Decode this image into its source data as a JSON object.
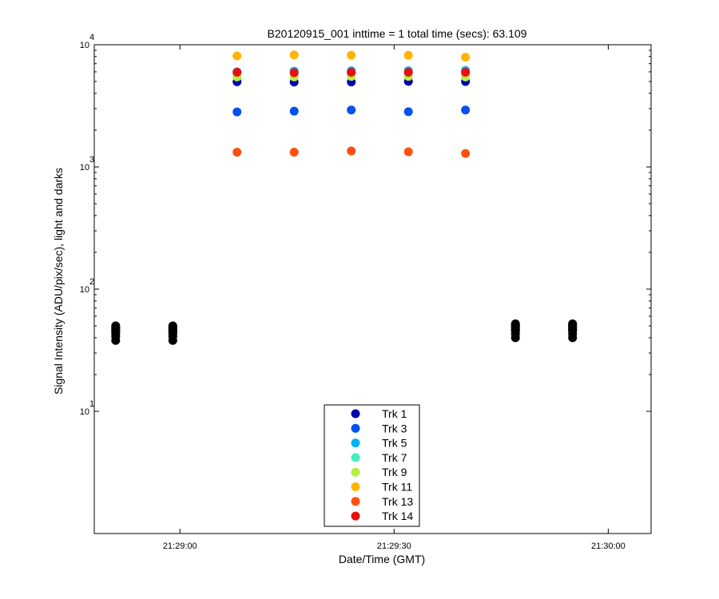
{
  "chart_data": {
    "type": "scatter",
    "title": "B20120915_001 inttime = 1 total time (secs): 63.109",
    "xlabel": "Date/Time (GMT)",
    "ylabel": "Signal Intensity (ADU/pix/sec), light and darks",
    "yscale": "log",
    "ylim": [
      1,
      10000
    ],
    "xlim": [
      "21:28:48",
      "21:30:06"
    ],
    "xticks": [
      "21:29:00",
      "21:29:30",
      "21:30:00"
    ],
    "yticks": [
      {
        "base": "10",
        "exp": "1"
      },
      {
        "base": "10",
        "exp": "2"
      },
      {
        "base": "10",
        "exp": "3"
      },
      {
        "base": "10",
        "exp": "4"
      }
    ],
    "grid": false,
    "legend_position": "bottom-center",
    "x": [
      "21:29:08",
      "21:29:16",
      "21:29:24",
      "21:29:32",
      "21:29:40"
    ],
    "series": [
      {
        "name": "Trk 1",
        "color": "#0000b4",
        "values": [
          4980,
          4950,
          4960,
          5010,
          5000
        ]
      },
      {
        "name": "Trk 3",
        "color": "#0050f0",
        "values": [
          2820,
          2860,
          2920,
          2830,
          2920
        ]
      },
      {
        "name": "Trk 5",
        "color": "#00b4f0",
        "values": [
          6000,
          6080,
          6120,
          6130,
          6160
        ]
      },
      {
        "name": "Trk 7",
        "color": "#40f0c0",
        "values": [
          5700,
          5750,
          5800,
          5800,
          5750
        ]
      },
      {
        "name": "Trk 9",
        "color": "#b4f040",
        "values": [
          5450,
          5450,
          5500,
          5500,
          5450
        ]
      },
      {
        "name": "Trk 11",
        "color": "#ffb400",
        "values": [
          8100,
          8250,
          8200,
          8200,
          7900
        ]
      },
      {
        "name": "Trk 13",
        "color": "#ff5010",
        "values": [
          1320,
          1320,
          1350,
          1330,
          1290
        ]
      },
      {
        "name": "Trk 14",
        "color": "#e81010",
        "values": [
          5950,
          5900,
          5950,
          5950,
          5950
        ]
      }
    ],
    "darks": {
      "color": "#000000",
      "x": [
        "21:28:51",
        "21:28:59",
        "21:29:47",
        "21:29:55"
      ],
      "values": [
        [
          38,
          41,
          43,
          44,
          45,
          46,
          47,
          48,
          49,
          50
        ],
        [
          38,
          41,
          43,
          44,
          45,
          46,
          47,
          48,
          49,
          50
        ],
        [
          40,
          43,
          45,
          46,
          47,
          48,
          49,
          50,
          51,
          52
        ],
        [
          40,
          43,
          45,
          46,
          47,
          48,
          49,
          50,
          51,
          52
        ]
      ]
    }
  }
}
